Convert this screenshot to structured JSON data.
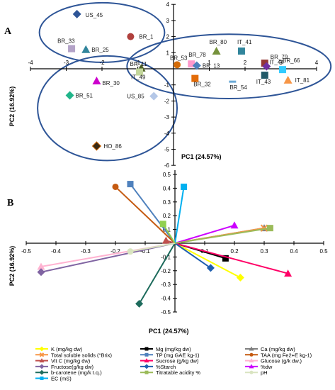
{
  "chart_data": [
    {
      "type": "scatter",
      "panel_label": "A",
      "xlabel": "PC1 (24.57%)",
      "ylabel": "PC2 (16.92%)",
      "xlim": [
        -4,
        4
      ],
      "ylim": [
        -6,
        4
      ],
      "x_ticks": [
        -4,
        -3,
        -2,
        -1,
        1,
        2,
        3,
        4
      ],
      "y_ticks": [
        4,
        3,
        2,
        1,
        -1,
        -2,
        -3,
        -4,
        -5,
        -6
      ],
      "grid": false,
      "points": [
        {
          "label": "US_45",
          "x": -2.7,
          "y": 3.4,
          "marker": "diamond",
          "color": "#2e5597"
        },
        {
          "label": "BR_1",
          "x": -1.2,
          "y": 2.0,
          "marker": "circle",
          "color": "#b0403d"
        },
        {
          "label": "BR_33",
          "x": -2.85,
          "y": 1.25,
          "marker": "square",
          "color": "#b3a2c7"
        },
        {
          "label": "BR_25",
          "x": -2.45,
          "y": 1.2,
          "marker": "triangle",
          "color": "#31859c"
        },
        {
          "label": "BR_11",
          "x": -0.9,
          "y": 0.05,
          "marker": "triangle",
          "color": "#4f6228"
        },
        {
          "label": "IT_49",
          "x": -0.95,
          "y": -0.2,
          "marker": "square",
          "color": "#c3d69b"
        },
        {
          "label": "BR_30",
          "x": -2.15,
          "y": -0.75,
          "marker": "triangle",
          "color": "#cc00cc"
        },
        {
          "label": "BR_51",
          "x": -2.9,
          "y": -1.65,
          "marker": "diamond",
          "color": "#21b58a"
        },
        {
          "label": "US_85",
          "x": -0.55,
          "y": -1.7,
          "marker": "diamond",
          "color": "#b4c7e7"
        },
        {
          "label": "HO_86",
          "x": -2.15,
          "y": -4.8,
          "marker": "diamond",
          "color": "#3a2a14"
        },
        {
          "label": "BR_53",
          "x": 0.1,
          "y": 0.25,
          "marker": "circle",
          "color": "#d46b08"
        },
        {
          "label": "BR_78",
          "x": 0.5,
          "y": 0.3,
          "marker": "square",
          "color": "#ff99cc"
        },
        {
          "label": "BR_13",
          "x": 0.65,
          "y": 0.2,
          "marker": "diamond",
          "color": "#4f81bd"
        },
        {
          "label": "BR_32",
          "x": 0.6,
          "y": -0.6,
          "marker": "square",
          "color": "#e36c09"
        },
        {
          "label": "BR_80",
          "x": 1.2,
          "y": 1.1,
          "marker": "triangle",
          "color": "#76923c"
        },
        {
          "label": "IT_41",
          "x": 1.9,
          "y": 1.1,
          "marker": "square",
          "color": "#31859c"
        },
        {
          "label": "BR_79",
          "x": 2.55,
          "y": 0.35,
          "marker": "square",
          "color": "#953735"
        },
        {
          "label": "IT_44",
          "x": 2.6,
          "y": 0.15,
          "marker": "diamond",
          "color": "#7030a0"
        },
        {
          "label": "BR_66",
          "x": 3.05,
          "y": -0.05,
          "marker": "square",
          "color": "#33ccff"
        },
        {
          "label": "BR_54",
          "x": 1.65,
          "y": -0.8,
          "marker": "dash",
          "color": "#6ba9d6"
        },
        {
          "label": "IT_43",
          "x": 2.55,
          "y": -0.4,
          "marker": "square",
          "color": "#215967"
        },
        {
          "label": "IT_81",
          "x": 3.2,
          "y": -0.7,
          "marker": "triangle",
          "color": "#f79646"
        }
      ],
      "ellipses_groups": [
        "US_45, BR_1, BR_33, BR_25",
        "BR_30, BR_51, US_85, HO_86, IT_49",
        "BR_53 ... IT_81"
      ]
    },
    {
      "type": "line",
      "panel_label": "B",
      "xlabel": "PC1 (24.57%)",
      "ylabel": "PC2 (16.92%)",
      "xlim": [
        -0.5,
        0.5
      ],
      "ylim": [
        -0.5,
        0.6
      ],
      "x_ticks": [
        -0.5,
        -0.4,
        -0.3,
        -0.2,
        -0.1,
        0.1,
        0.2,
        0.3,
        0.4,
        0.5
      ],
      "y_ticks": [
        0.6,
        0.5,
        0.4,
        0.3,
        0.2,
        0.1,
        -0.1,
        -0.2,
        -0.3,
        -0.4,
        -0.5
      ],
      "grid": false,
      "series": [
        {
          "name": "K (mg/kg dw)",
          "x": 0.22,
          "y": -0.25,
          "color": "#ffff00",
          "marker": "diamond"
        },
        {
          "name": "Mg (mg/kg dw)",
          "x": 0.17,
          "y": -0.11,
          "color": "#000000",
          "marker": "square"
        },
        {
          "name": "Ca (mg/kg dw)",
          "x": 0.3,
          "y": 0.11,
          "color": "#7f7f7f",
          "marker": "triangle"
        },
        {
          "name": "Total soluble solids (°Brix)",
          "x": 0.3,
          "y": 0.11,
          "color": "#f79646",
          "marker": "x"
        },
        {
          "name": "TP   (mg GAE kg-1)",
          "x": -0.15,
          "y": 0.43,
          "color": "#4f81bd",
          "marker": "square"
        },
        {
          "name": "TAA (mg Fe2+E kg-1)",
          "x": -0.2,
          "y": 0.41,
          "color": "#c55a11",
          "marker": "circle"
        },
        {
          "name": "Vit C (mg/kg dw)",
          "x": -0.03,
          "y": 0.02,
          "color": "#c0504d",
          "marker": "triangle"
        },
        {
          "name": "Sucrose (g/kg dw)",
          "x": 0.38,
          "y": -0.22,
          "color": "#ff0066",
          "marker": "triangle"
        },
        {
          "name": "Glucose (g/k dw.)",
          "x": -0.45,
          "y": -0.17,
          "color": "#ffb3d1",
          "marker": "triangle"
        },
        {
          "name": "Fructose(g/kg dw)",
          "x": -0.45,
          "y": -0.21,
          "color": "#8064a2",
          "marker": "diamond"
        },
        {
          "name": "%Starch",
          "x": 0.12,
          "y": -0.18,
          "color": "#1f5fb0",
          "marker": "diamond"
        },
        {
          "name": "%dw",
          "x": 0.2,
          "y": 0.13,
          "color": "#cc00ff",
          "marker": "triangle"
        },
        {
          "name": "b-carotene (mg/k t.q.)",
          "x": -0.12,
          "y": -0.44,
          "color": "#1d6b5c",
          "marker": "diamond"
        },
        {
          "name": "Titratable acidity %",
          "x": 0.32,
          "y": 0.11,
          "color": "#9bbb59",
          "marker": "square"
        },
        {
          "name": "pH",
          "x": -0.15,
          "y": -0.06,
          "color": "#d9e4c0",
          "marker": "circle"
        },
        {
          "name": "EC (mS)",
          "x": 0.03,
          "y": 0.41,
          "color": "#00b0f0",
          "marker": "square"
        },
        {
          "name": "",
          "x": -0.04,
          "y": 0.14,
          "color": "#92d050",
          "marker": "square"
        }
      ],
      "legend_placement": "bottom"
    }
  ]
}
